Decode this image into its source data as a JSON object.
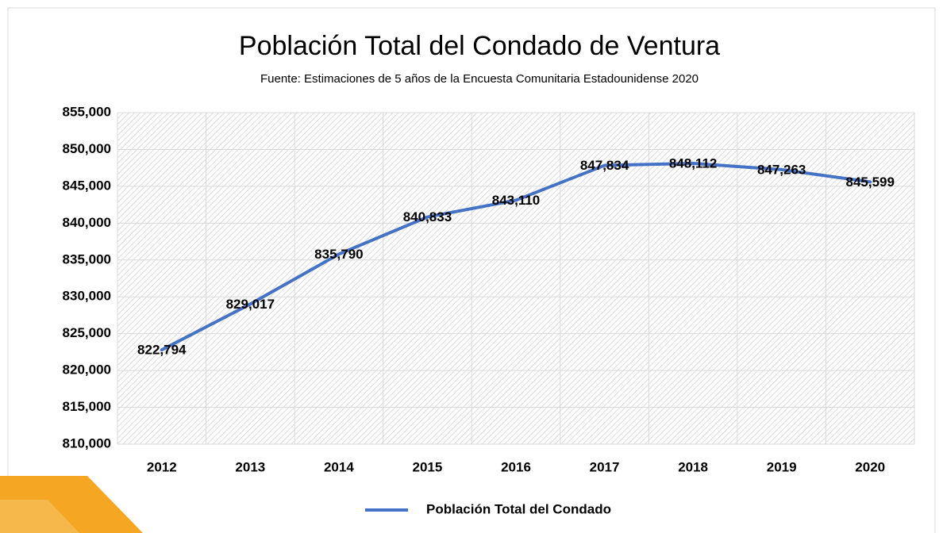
{
  "chart_data": {
    "type": "line",
    "title": "Población Total del Condado de Ventura",
    "subtitle": "Fuente: Estimaciones de 5 años de la Encuesta Comunitaria Estadounidense 2020",
    "categories": [
      "2012",
      "2013",
      "2014",
      "2015",
      "2016",
      "2017",
      "2018",
      "2019",
      "2020"
    ],
    "series": [
      {
        "name": "Población Total del Condado",
        "color": "#4472c4",
        "values": [
          822794,
          829017,
          835790,
          840833,
          843110,
          847834,
          848112,
          847263,
          845599
        ],
        "value_labels": [
          "822,794",
          "829,017",
          "835,790",
          "840,833",
          "843,110",
          "847,834",
          "848,112",
          "847,263",
          "845,599"
        ]
      }
    ],
    "ylim": [
      810000,
      855000
    ],
    "yticks": [
      {
        "value": 810000,
        "label": "810,000"
      },
      {
        "value": 815000,
        "label": "815,000"
      },
      {
        "value": 820000,
        "label": "820,000"
      },
      {
        "value": 825000,
        "label": "825,000"
      },
      {
        "value": 830000,
        "label": "830,000"
      },
      {
        "value": 835000,
        "label": "835,000"
      },
      {
        "value": 840000,
        "label": "840,000"
      },
      {
        "value": 845000,
        "label": "845,000"
      },
      {
        "value": 850000,
        "label": "850,000"
      },
      {
        "value": 855000,
        "label": "855,000"
      }
    ],
    "grid": true,
    "legend": "bottom"
  }
}
